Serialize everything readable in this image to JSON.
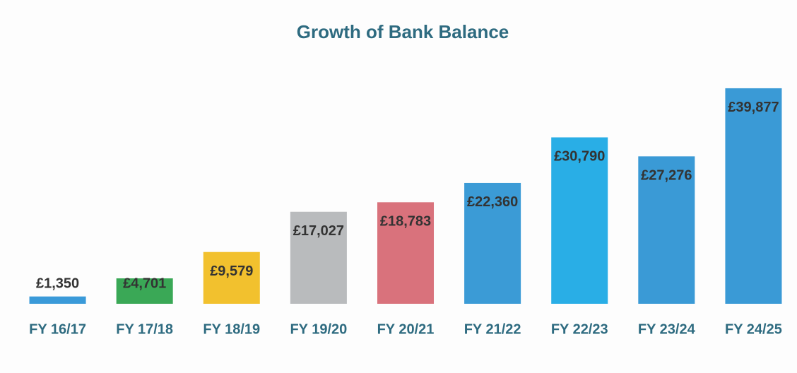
{
  "chart_data": {
    "type": "bar",
    "title": "Growth of Bank Balance",
    "categories": [
      "FY 16/17",
      "FY 17/18",
      "FY 18/19",
      "FY 19/20",
      "FY 20/21",
      "FY 21/22",
      "FY 22/23",
      "FY 23/24",
      "FY 24/25"
    ],
    "values": [
      1350,
      4701,
      9579,
      17027,
      18783,
      22360,
      30790,
      27276,
      39877
    ],
    "value_labels": [
      "£1,350",
      "£4,701",
      "£9,579",
      "£17,027",
      "£18,783",
      "£22,360",
      "£30,790",
      "£27,276",
      "£39,877"
    ],
    "colors": [
      "#3a9ad9",
      "#3aa856",
      "#f2c12e",
      "#b9bbbd",
      "#d9727c",
      "#3b9bd6",
      "#29aee6",
      "#3a9ad6",
      "#3a9ad6"
    ],
    "ylim": [
      0,
      40000
    ]
  }
}
